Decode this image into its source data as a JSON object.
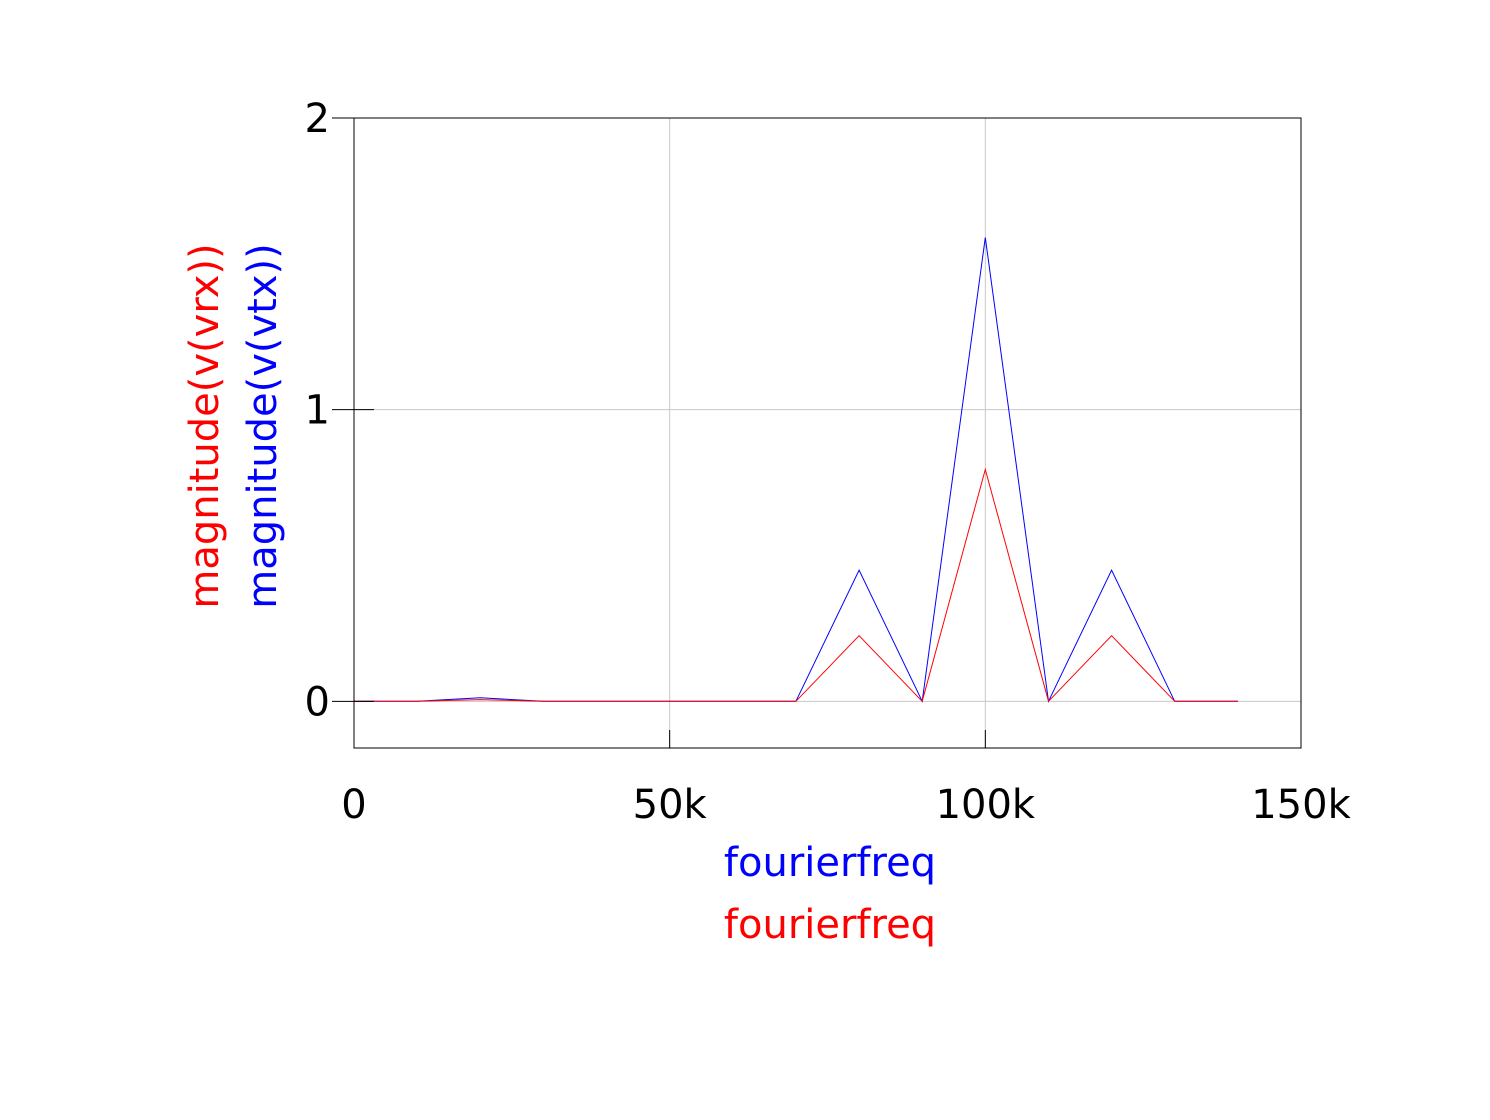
{
  "chart_data": {
    "type": "line",
    "title": "",
    "xlabels": [
      {
        "text": "fourierfreq",
        "color": "#0000ff"
      },
      {
        "text": "fourierfreq",
        "color": "#ff0000"
      }
    ],
    "ylabels": [
      {
        "text": "magnitude(v(vrx))",
        "color": "#ff0000"
      },
      {
        "text": "magnitude(v(vtx))",
        "color": "#0000ff"
      }
    ],
    "xlim": [
      0,
      150000
    ],
    "ylim": [
      -0.16,
      2
    ],
    "xticks": [
      {
        "value": 0,
        "label": "0"
      },
      {
        "value": 50000,
        "label": "50k"
      },
      {
        "value": 100000,
        "label": "100k"
      },
      {
        "value": 150000,
        "label": "150k"
      }
    ],
    "yticks": [
      {
        "value": 0,
        "label": "0"
      },
      {
        "value": 1,
        "label": "1"
      },
      {
        "value": 2,
        "label": "2"
      }
    ],
    "grid": true,
    "legend": "none",
    "series": [
      {
        "name": "magnitude(v(vtx))",
        "color": "#0000ff",
        "x": [
          0,
          10000,
          20000,
          30000,
          40000,
          50000,
          60000,
          70000,
          80000,
          90000,
          100000,
          110000,
          120000,
          130000,
          140000
        ],
        "y": [
          0,
          0,
          0.012,
          0,
          0,
          0,
          0,
          0,
          0.45,
          0,
          1.59,
          0,
          0.45,
          0,
          0
        ]
      },
      {
        "name": "magnitude(v(vrx))",
        "color": "#ff0000",
        "x": [
          0,
          10000,
          20000,
          30000,
          40000,
          50000,
          60000,
          70000,
          80000,
          90000,
          100000,
          110000,
          120000,
          130000,
          140000
        ],
        "y": [
          0,
          0,
          0.006,
          0,
          0,
          0,
          0,
          0,
          0.225,
          0,
          0.795,
          0,
          0.225,
          0,
          0
        ]
      }
    ]
  }
}
